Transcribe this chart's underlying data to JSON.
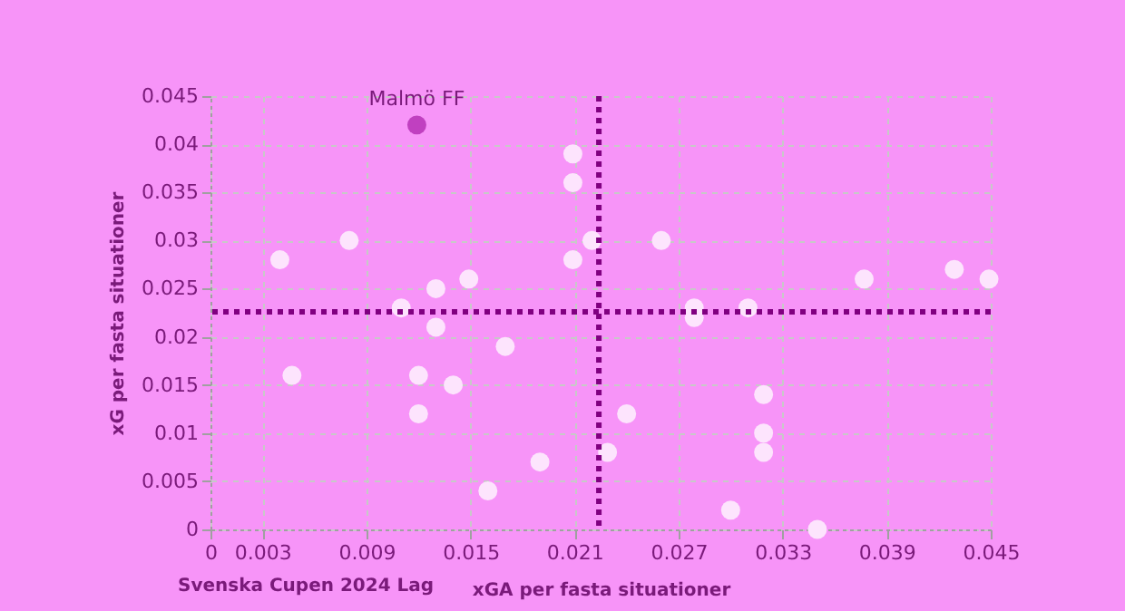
{
  "chart_data": {
    "type": "scatter",
    "xlabel": "xGA per fasta situationer",
    "ylabel": "xG per fasta situationer",
    "xlim": [
      0,
      0.045
    ],
    "xticks": [
      0,
      0.003,
      0.009,
      0.015,
      0.021,
      0.027,
      0.033,
      0.039,
      0.045
    ],
    "ylim": [
      0,
      0.045
    ],
    "yticks": [
      0,
      0.005,
      0.01,
      0.015,
      0.02,
      0.025,
      0.03,
      0.035,
      0.04,
      0.045
    ],
    "grid": true,
    "marker": "circle",
    "series": [
      {
        "color": "#fde4fd",
        "x": [
          0.004,
          0.008,
          0.011,
          0.013,
          0.0149,
          0.0209,
          0.0209,
          0.0209,
          0.022,
          0.026,
          0.0377,
          0.0429,
          0.0449,
          0.0279,
          0.0279,
          0.031,
          0.013,
          0.0047,
          0.012,
          0.012,
          0.014,
          0.017,
          0.016,
          0.019,
          0.024,
          0.0229,
          0.0319,
          0.0319,
          0.0319,
          0.03,
          0.035
        ],
        "values": [
          0.028,
          0.03,
          0.023,
          0.025,
          0.026,
          0.039,
          0.036,
          0.028,
          0.03,
          0.03,
          0.026,
          0.027,
          0.026,
          0.023,
          0.022,
          0.023,
          0.021,
          0.016,
          0.016,
          0.012,
          0.015,
          0.019,
          0.004,
          0.007,
          0.012,
          0.008,
          0.014,
          0.01,
          0.008,
          0.002,
          0.0
        ]
      },
      {
        "color": "#c040c0",
        "x": [
          0.0119
        ],
        "values": [
          0.042
        ]
      }
    ],
    "ref_lines": [
      {
        "axis": "x",
        "value": 0.0224,
        "color": "#800080",
        "line_style": "dotted"
      },
      {
        "axis": "y",
        "value": 0.0226,
        "color": "#800080",
        "line_style": "dotted"
      }
    ],
    "annotations": [
      {
        "text": "Malmö FF",
        "x": 0.0119,
        "y": 0.042
      },
      "Svenska Cupen 2024 Lag"
    ]
  }
}
